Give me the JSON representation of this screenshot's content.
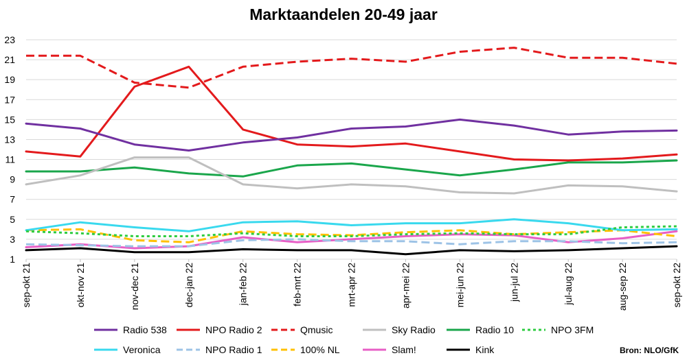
{
  "chart_data": {
    "type": "line",
    "title": "Marktaandelen 20-49 jaar",
    "xlabel": "",
    "ylabel": "",
    "ylim": [
      1,
      23
    ],
    "yticks": [
      1,
      3,
      5,
      7,
      9,
      11,
      13,
      15,
      17,
      19,
      21,
      23
    ],
    "grid": true,
    "legend_position": "bottom",
    "categories": [
      "sep-okt 21",
      "okt-nov 21",
      "nov-dec 21",
      "dec-jan 22",
      "jan-feb 22",
      "feb-mrt 22",
      "mrt-apr 22",
      "apr-mei 22",
      "mei-jun 22",
      "jun-jul 22",
      "jul-aug 22",
      "aug-sep 22",
      "sep-okt 22"
    ],
    "series": [
      {
        "name": "Radio 538",
        "color": "#7030a0",
        "dash": "solid",
        "values": [
          14.6,
          14.1,
          12.5,
          11.9,
          12.7,
          13.2,
          14.1,
          14.3,
          15.0,
          14.4,
          13.5,
          13.8,
          13.9
        ]
      },
      {
        "name": "NPO Radio 2",
        "color": "#e31a1c",
        "dash": "solid",
        "values": [
          11.8,
          11.3,
          18.3,
          20.3,
          14.0,
          12.5,
          12.3,
          12.6,
          11.8,
          11.0,
          10.9,
          11.1,
          11.5
        ]
      },
      {
        "name": "Qmusic",
        "color": "#e31a1c",
        "dash": "dash",
        "values": [
          21.4,
          21.4,
          18.7,
          18.2,
          20.3,
          20.8,
          21.1,
          20.8,
          21.8,
          22.2,
          21.2,
          21.2,
          20.6
        ]
      },
      {
        "name": "Sky Radio",
        "color": "#bfbfbf",
        "dash": "solid",
        "values": [
          8.5,
          9.4,
          11.2,
          11.2,
          8.5,
          8.1,
          8.5,
          8.3,
          7.7,
          7.6,
          8.4,
          8.3,
          7.8
        ]
      },
      {
        "name": "Radio 10",
        "color": "#1aa64b",
        "dash": "solid",
        "values": [
          9.8,
          9.8,
          10.2,
          9.6,
          9.3,
          10.4,
          10.6,
          10.0,
          9.4,
          10.0,
          10.7,
          10.7,
          10.9
        ]
      },
      {
        "name": "NPO 3FM",
        "color": "#2ecc40",
        "dash": "dot",
        "values": [
          3.8,
          3.6,
          3.3,
          3.3,
          3.6,
          3.3,
          3.3,
          3.5,
          3.6,
          3.5,
          3.5,
          4.2,
          4.3
        ]
      },
      {
        "name": "Veronica",
        "color": "#39d9ee",
        "dash": "solid",
        "values": [
          3.9,
          4.7,
          4.2,
          3.8,
          4.7,
          4.8,
          4.4,
          4.6,
          4.6,
          5.0,
          4.6,
          3.9,
          4.0
        ]
      },
      {
        "name": "NPO Radio 1",
        "color": "#9dc3e6",
        "dash": "dash",
        "values": [
          2.5,
          2.4,
          2.3,
          2.3,
          2.9,
          3.0,
          2.8,
          2.8,
          2.5,
          2.8,
          2.8,
          2.6,
          2.7
        ]
      },
      {
        "name": "100% NL",
        "color": "#ffc000",
        "dash": "dash",
        "values": [
          3.9,
          4.0,
          2.9,
          2.7,
          3.8,
          3.5,
          3.4,
          3.7,
          3.9,
          3.5,
          3.7,
          3.9,
          3.3
        ]
      },
      {
        "name": "Slam!",
        "color": "#e75fc6",
        "dash": "solid",
        "values": [
          2.2,
          2.5,
          2.1,
          2.3,
          3.2,
          2.7,
          3.0,
          3.3,
          3.5,
          3.4,
          2.7,
          3.1,
          3.8
        ]
      },
      {
        "name": "Kink",
        "color": "#000000",
        "dash": "solid",
        "values": [
          1.9,
          2.1,
          1.7,
          1.7,
          2.0,
          1.9,
          1.9,
          1.5,
          1.9,
          1.8,
          1.9,
          2.1,
          2.3
        ]
      }
    ]
  },
  "source": "Bron: NLO/GfK"
}
